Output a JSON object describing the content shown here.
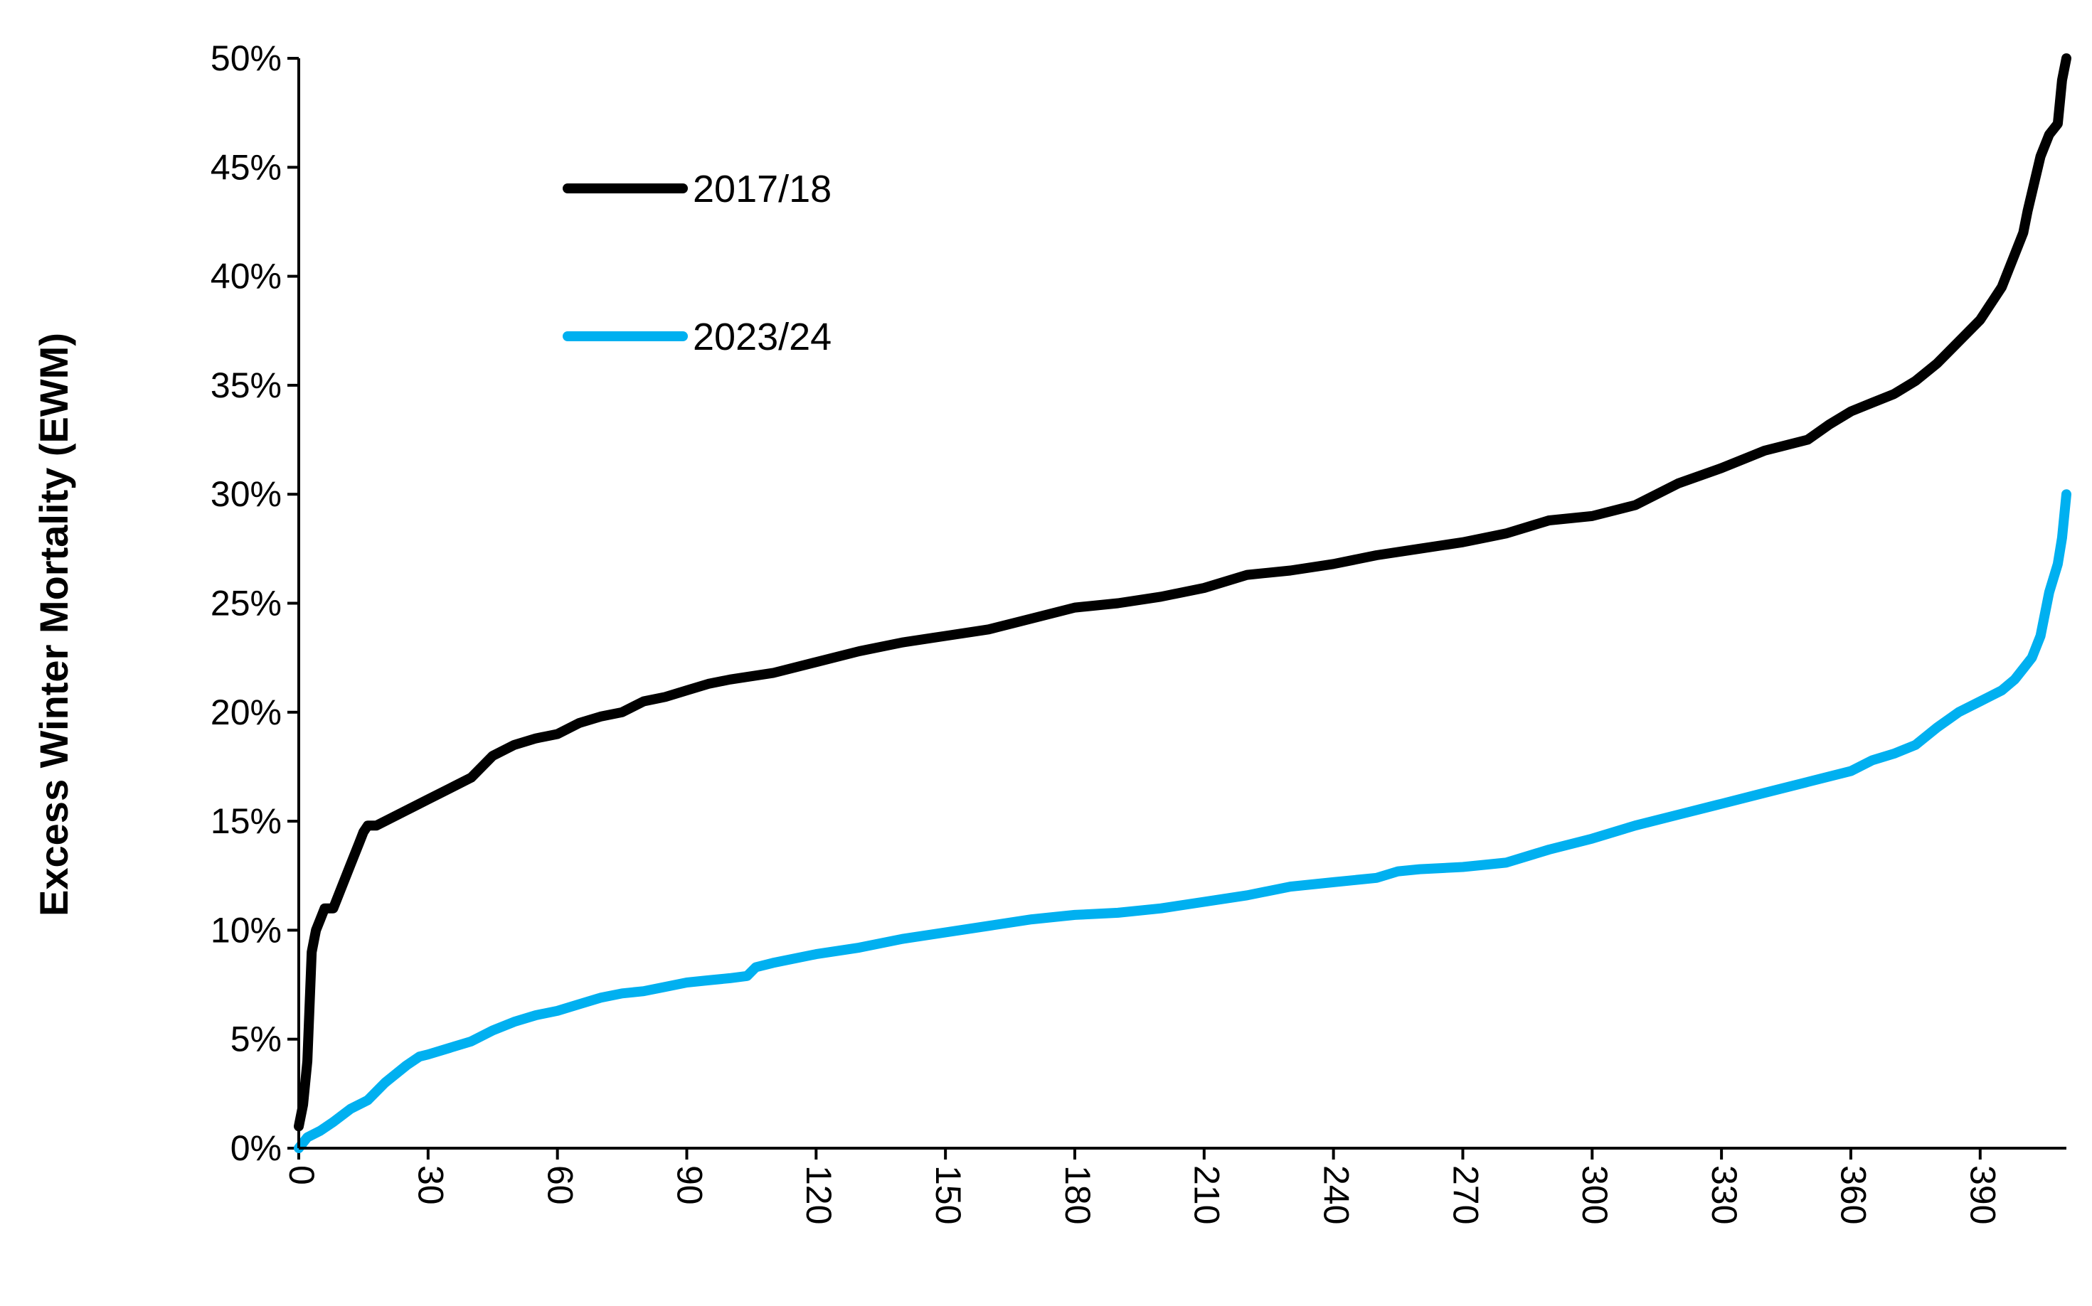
{
  "chart_data": {
    "type": "line",
    "title": "",
    "xlabel": "",
    "ylabel": "Excess Winter Mortality (EWM)",
    "xlim": [
      0,
      410
    ],
    "ylim": [
      0,
      0.5
    ],
    "x_ticks": [
      "0",
      "30",
      "60",
      "90",
      "120",
      "150",
      "180",
      "210",
      "240",
      "270",
      "300",
      "330",
      "360",
      "390"
    ],
    "y_ticks": [
      "0%",
      "5%",
      "10%",
      "15%",
      "20%",
      "25%",
      "30%",
      "35%",
      "40%",
      "45%",
      "50%"
    ],
    "grid": false,
    "legend_position": "top-left",
    "series": [
      {
        "name": "2017/18",
        "color": "#000000",
        "x": [
          0,
          1,
          2,
          3,
          4,
          5,
          6,
          8,
          10,
          12,
          14,
          15,
          16,
          18,
          20,
          25,
          30,
          35,
          40,
          45,
          50,
          55,
          60,
          65,
          70,
          75,
          80,
          85,
          90,
          95,
          100,
          110,
          120,
          130,
          140,
          150,
          160,
          170,
          180,
          190,
          200,
          210,
          220,
          230,
          240,
          250,
          260,
          270,
          280,
          290,
          300,
          310,
          320,
          330,
          340,
          350,
          355,
          360,
          365,
          370,
          375,
          380,
          385,
          390,
          395,
          398,
          400,
          401,
          404,
          406,
          408,
          409,
          410
        ],
        "y": [
          0.01,
          0.02,
          0.04,
          0.09,
          0.1,
          0.105,
          0.11,
          0.11,
          0.12,
          0.13,
          0.14,
          0.145,
          0.148,
          0.148,
          0.15,
          0.155,
          0.16,
          0.165,
          0.17,
          0.18,
          0.185,
          0.188,
          0.19,
          0.195,
          0.198,
          0.2,
          0.205,
          0.207,
          0.21,
          0.213,
          0.215,
          0.218,
          0.223,
          0.228,
          0.232,
          0.235,
          0.238,
          0.243,
          0.248,
          0.25,
          0.253,
          0.257,
          0.263,
          0.265,
          0.268,
          0.272,
          0.275,
          0.278,
          0.282,
          0.288,
          0.29,
          0.295,
          0.305,
          0.312,
          0.32,
          0.325,
          0.332,
          0.338,
          0.342,
          0.346,
          0.352,
          0.36,
          0.37,
          0.38,
          0.395,
          0.41,
          0.42,
          0.43,
          0.455,
          0.465,
          0.47,
          0.49,
          0.5
        ]
      },
      {
        "name": "2023/24",
        "color": "#00b0f0",
        "x": [
          0,
          2,
          5,
          8,
          12,
          16,
          20,
          25,
          28,
          30,
          35,
          40,
          45,
          50,
          55,
          60,
          65,
          70,
          75,
          80,
          85,
          90,
          95,
          100,
          104,
          106,
          110,
          120,
          130,
          140,
          150,
          160,
          170,
          180,
          190,
          200,
          210,
          220,
          230,
          240,
          250,
          255,
          260,
          270,
          280,
          290,
          300,
          310,
          320,
          330,
          340,
          350,
          360,
          365,
          370,
          375,
          380,
          385,
          390,
          395,
          398,
          400,
          402,
          404,
          406,
          408,
          409,
          410
        ],
        "y": [
          0.0,
          0.005,
          0.008,
          0.012,
          0.018,
          0.022,
          0.03,
          0.038,
          0.042,
          0.043,
          0.046,
          0.049,
          0.054,
          0.058,
          0.061,
          0.063,
          0.066,
          0.069,
          0.071,
          0.072,
          0.074,
          0.076,
          0.077,
          0.078,
          0.079,
          0.083,
          0.085,
          0.089,
          0.092,
          0.096,
          0.099,
          0.102,
          0.105,
          0.107,
          0.108,
          0.11,
          0.113,
          0.116,
          0.12,
          0.122,
          0.124,
          0.127,
          0.128,
          0.129,
          0.131,
          0.137,
          0.142,
          0.148,
          0.153,
          0.158,
          0.163,
          0.168,
          0.173,
          0.178,
          0.181,
          0.185,
          0.193,
          0.2,
          0.205,
          0.21,
          0.215,
          0.22,
          0.225,
          0.235,
          0.255,
          0.268,
          0.28,
          0.3
        ]
      }
    ]
  }
}
